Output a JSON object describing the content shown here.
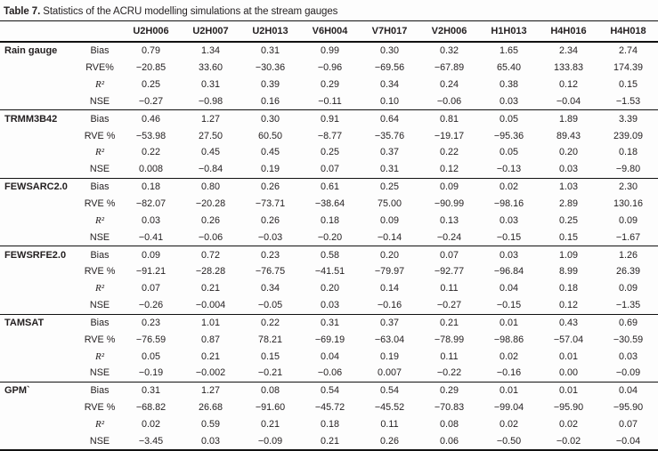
{
  "caption": {
    "label": "Table 7.",
    "text": " Statistics of the ACRU modelling simulations at the stream gauges"
  },
  "colors": {
    "text": "#231f20",
    "rule": "#111111",
    "background": "#fdfdfd"
  },
  "table": {
    "columns": [
      "U2H006",
      "U2H007",
      "U2H013",
      "V6H004",
      "V7H017",
      "V2H006",
      "H1H013",
      "H4H016",
      "H4H018"
    ],
    "groups": [
      {
        "name": "Rain gauge",
        "rows": [
          {
            "stat": "Bias",
            "values": [
              "0.79",
              "1.34",
              "0.31",
              "0.99",
              "0.30",
              "0.32",
              "1.65",
              "2.34",
              "2.74"
            ]
          },
          {
            "stat": "RVE%",
            "values": [
              "−20.85",
              "33.60",
              "−30.36",
              "−0.96",
              "−69.56",
              "−67.89",
              "65.40",
              "133.83",
              "174.39"
            ]
          },
          {
            "stat": "R²",
            "values": [
              "0.25",
              "0.31",
              "0.39",
              "0.29",
              "0.34",
              "0.24",
              "0.38",
              "0.12",
              "0.15"
            ]
          },
          {
            "stat": "NSE",
            "values": [
              "−0.27",
              "−0.98",
              "0.16",
              "−0.11",
              "0.10",
              "−0.06",
              "0.03",
              "−0.04",
              "−1.53"
            ]
          }
        ]
      },
      {
        "name": "TRMM3B42",
        "rows": [
          {
            "stat": "Bias",
            "values": [
              "0.46",
              "1.27",
              "0.30",
              "0.91",
              "0.64",
              "0.81",
              "0.05",
              "1.89",
              "3.39"
            ]
          },
          {
            "stat": "RVE %",
            "values": [
              "−53.98",
              "27.50",
              "60.50",
              "−8.77",
              "−35.76",
              "−19.17",
              "−95.36",
              "89.43",
              "239.09"
            ]
          },
          {
            "stat": "R²",
            "values": [
              "0.22",
              "0.45",
              "0.45",
              "0.25",
              "0.37",
              "0.22",
              "0.05",
              "0.20",
              "0.18"
            ]
          },
          {
            "stat": "NSE",
            "values": [
              "0.008",
              "−0.84",
              "0.19",
              "0.07",
              "0.31",
              "0.12",
              "−0.13",
              "0.03",
              "−9.80"
            ]
          }
        ]
      },
      {
        "name": "FEWSARC2.0",
        "rows": [
          {
            "stat": "Bias",
            "values": [
              "0.18",
              "0.80",
              "0.26",
              "0.61",
              "0.25",
              "0.09",
              "0.02",
              "1.03",
              "2.30"
            ]
          },
          {
            "stat": "RVE %",
            "values": [
              "−82.07",
              "−20.28",
              "−73.71",
              "−38.64",
              "75.00",
              "−90.99",
              "−98.16",
              "2.89",
              "130.16"
            ]
          },
          {
            "stat": "R²",
            "values": [
              "0.03",
              "0.26",
              "0.26",
              "0.18",
              "0.09",
              "0.13",
              "0.03",
              "0.25",
              "0.09"
            ]
          },
          {
            "stat": "NSE",
            "values": [
              "−0.41",
              "−0.06",
              "−0.03",
              "−0.20",
              "−0.14",
              "−0.24",
              "−0.15",
              "0.15",
              "−1.67"
            ]
          }
        ]
      },
      {
        "name": "FEWSRFE2.0",
        "rows": [
          {
            "stat": "Bias",
            "values": [
              "0.09",
              "0.72",
              "0.23",
              "0.58",
              "0.20",
              "0.07",
              "0.03",
              "1.09",
              "1.26"
            ]
          },
          {
            "stat": "RVE %",
            "values": [
              "−91.21",
              "−28.28",
              "−76.75",
              "−41.51",
              "−79.97",
              "−92.77",
              "−96.84",
              "8.99",
              "26.39"
            ]
          },
          {
            "stat": "R²",
            "values": [
              "0.07",
              "0.21",
              "0.34",
              "0.20",
              "0.14",
              "0.11",
              "0.04",
              "0.18",
              "0.09"
            ]
          },
          {
            "stat": "NSE",
            "values": [
              "−0.26",
              "−0.004",
              "−0.05",
              "0.03",
              "−0.16",
              "−0.27",
              "−0.15",
              "0.12",
              "−1.35"
            ]
          }
        ]
      },
      {
        "name": "TAMSAT",
        "rows": [
          {
            "stat": "Bias",
            "values": [
              "0.23",
              "1.01",
              "0.22",
              "0.31",
              "0.37",
              "0.21",
              "0.01",
              "0.43",
              "0.69"
            ]
          },
          {
            "stat": "RVE %",
            "values": [
              "−76.59",
              "0.87",
              "78.21",
              "−69.19",
              "−63.04",
              "−78.99",
              "−98.86",
              "−57.04",
              "−30.59"
            ]
          },
          {
            "stat": "R²",
            "values": [
              "0.05",
              "0.21",
              "0.15",
              "0.04",
              "0.19",
              "0.11",
              "0.02",
              "0.01",
              "0.03"
            ]
          },
          {
            "stat": "NSE",
            "values": [
              "−0.19",
              "−0.002",
              "−0.21",
              "−0.06",
              "0.007",
              "−0.22",
              "−0.16",
              "0.00",
              "−0.09"
            ]
          }
        ]
      },
      {
        "name": "GPM`",
        "rows": [
          {
            "stat": "Bias",
            "values": [
              "0.31",
              "1.27",
              "0.08",
              "0.54",
              "0.54",
              "0.29",
              "0.01",
              "0.01",
              "0.04"
            ]
          },
          {
            "stat": "RVE %",
            "values": [
              "−68.82",
              "26.68",
              "−91.60",
              "−45.72",
              "−45.52",
              "−70.83",
              "−99.04",
              "−95.90",
              "−95.90"
            ]
          },
          {
            "stat": "R²",
            "values": [
              "0.02",
              "0.59",
              "0.21",
              "0.18",
              "0.11",
              "0.08",
              "0.02",
              "0.02",
              "0.07"
            ]
          },
          {
            "stat": "NSE",
            "values": [
              "−3.45",
              "0.03",
              "−0.09",
              "0.21",
              "0.26",
              "0.06",
              "−0.50",
              "−0.02",
              "−0.04"
            ]
          }
        ]
      }
    ]
  }
}
